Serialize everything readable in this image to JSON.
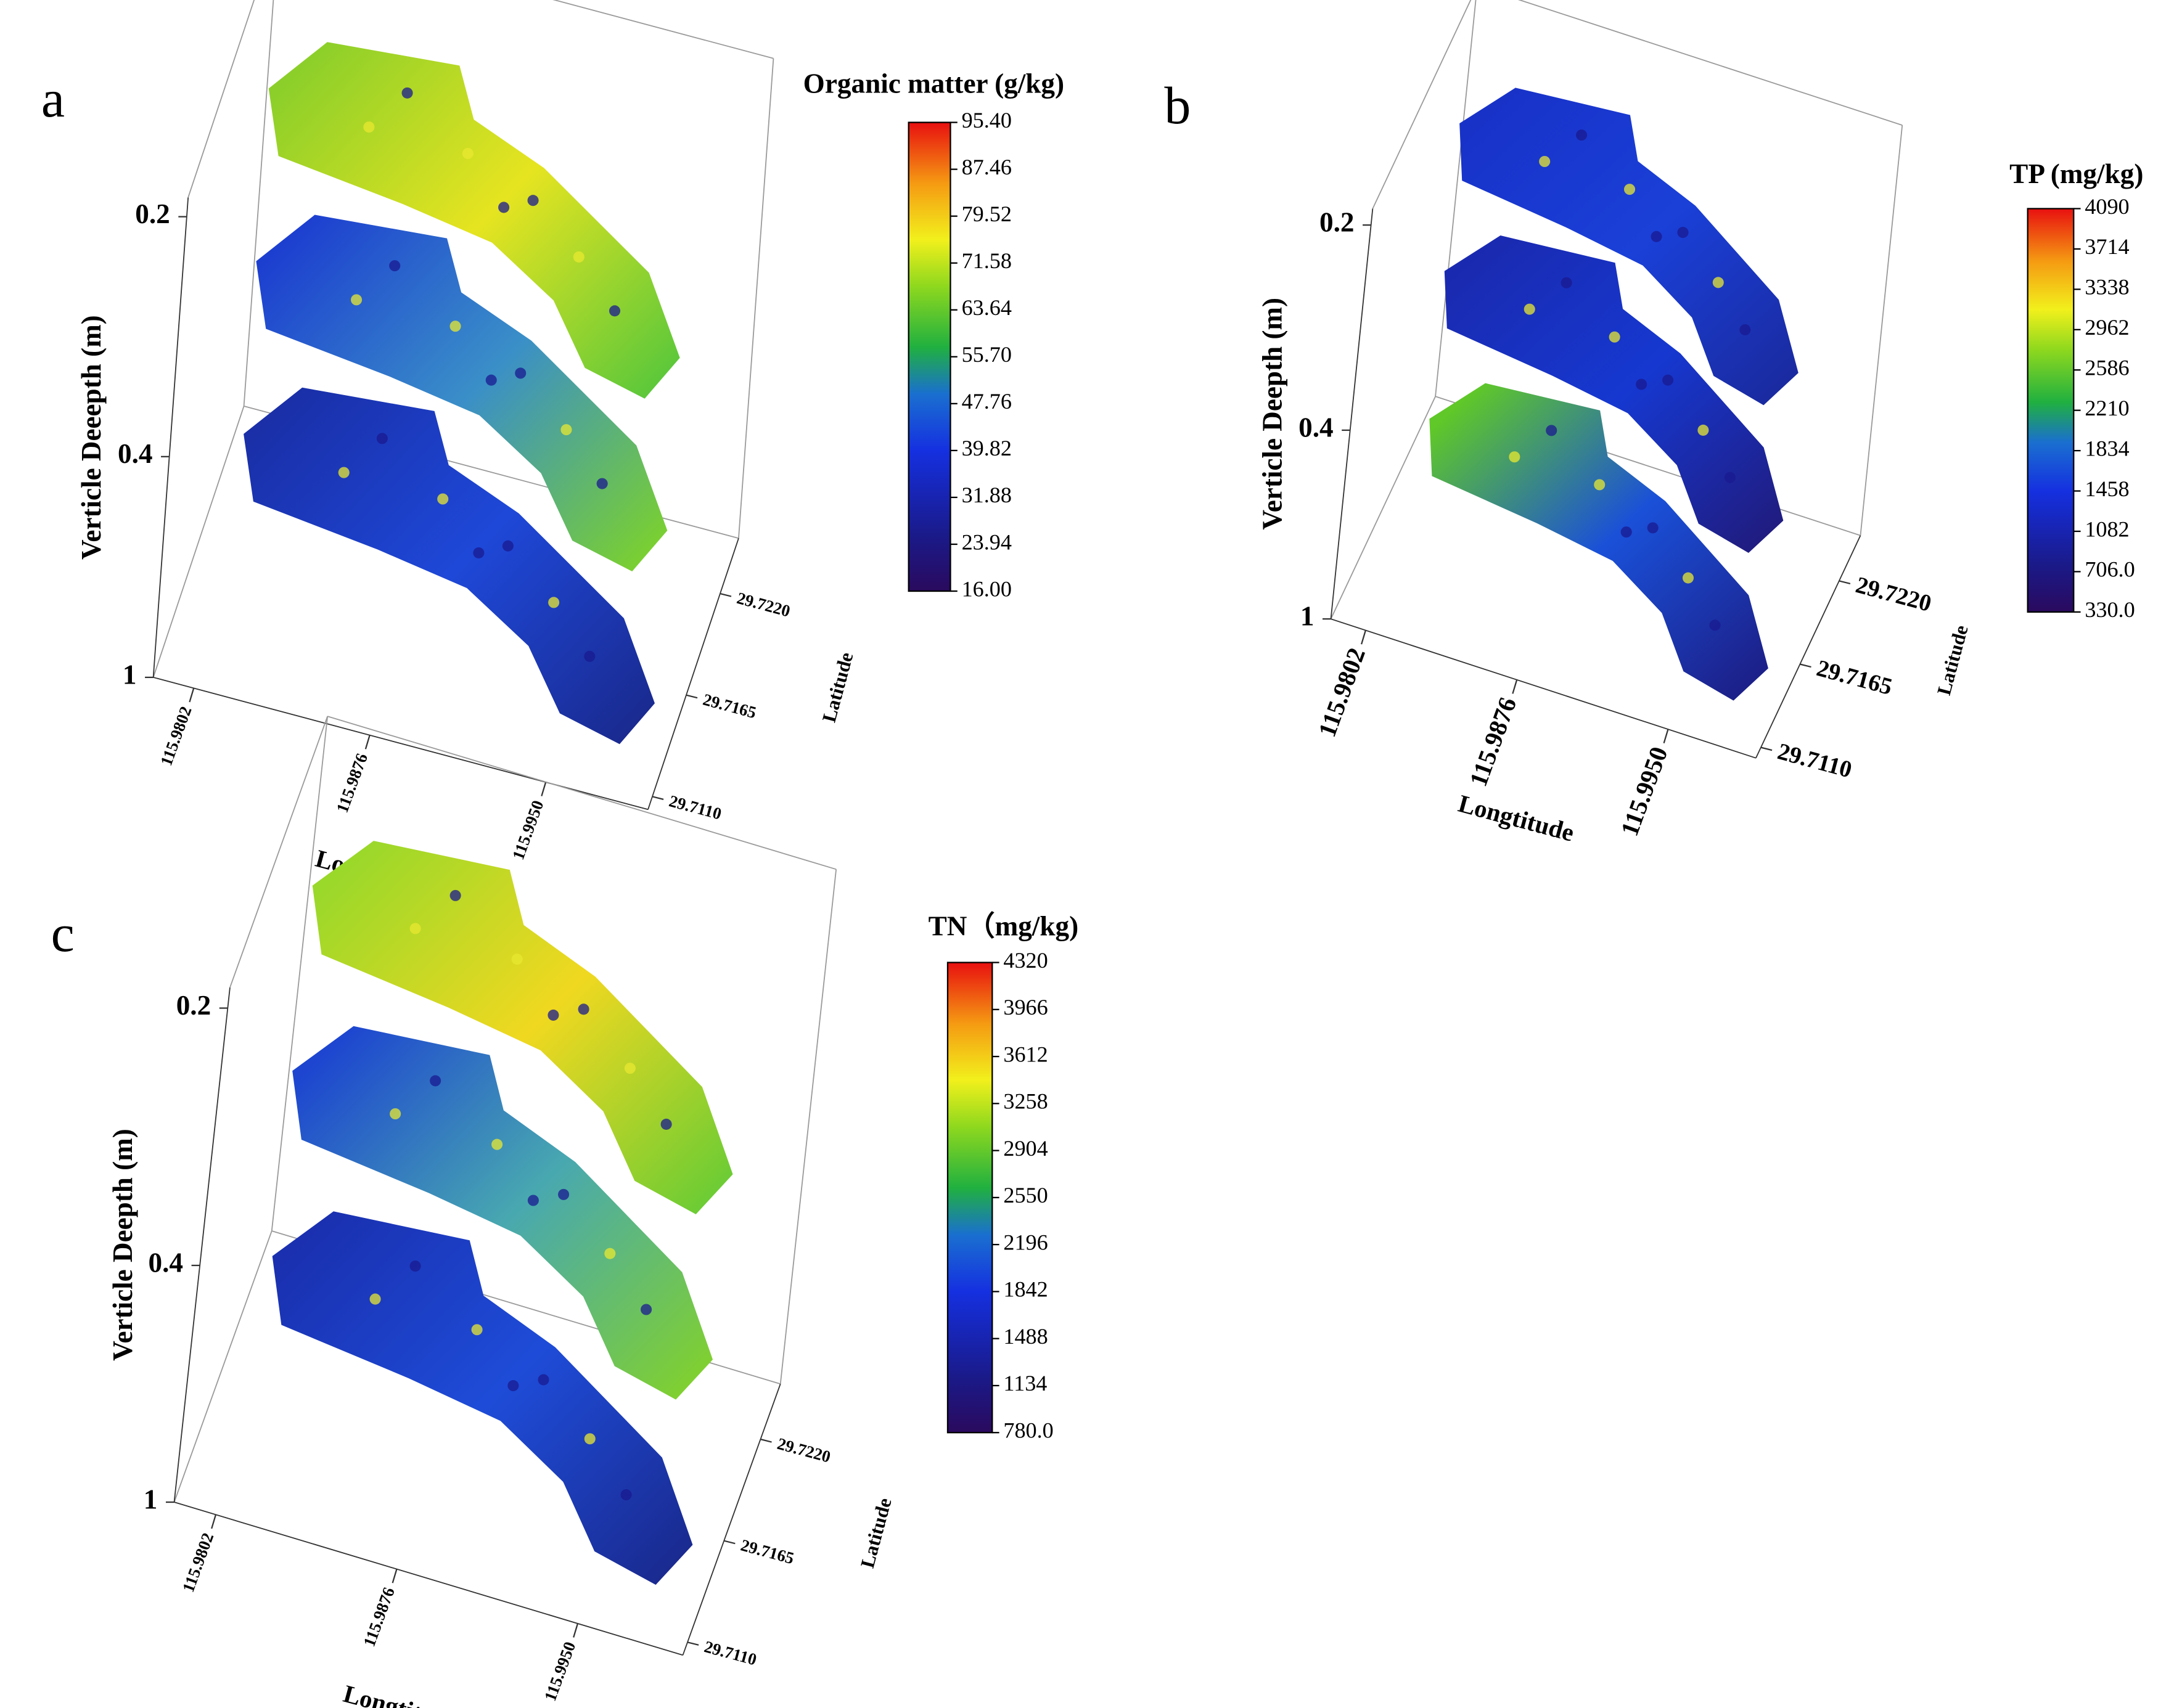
{
  "chart_data": [
    {
      "type": "surface3d",
      "panel_label": "a",
      "title": "Organic matter (g/kg)",
      "clim": [
        16,
        95.4
      ],
      "cticks": [
        {
          "value": 95.4,
          "label": "95.40"
        },
        87.46,
        79.52,
        71.58,
        63.64,
        {
          "value": 55.7,
          "label": "55.70"
        },
        47.76,
        39.82,
        31.88,
        23.94,
        {
          "value": 16,
          "label": "16.00"
        }
      ],
      "zlabel": "Verticle Deeepth (m)",
      "zticks": [
        0.2,
        0.4,
        1
      ],
      "xlabel": "Longtitude",
      "xlim": [
        115.9785,
        115.9993
      ],
      "xticks": [
        115.9802,
        115.9876,
        {
          "value": 115.995,
          "label": "115.9950"
        }
      ],
      "ylabel": "Latitude",
      "ylim": [
        29.7103,
        29.725
      ],
      "yticks": [
        {
          "value": 29.711,
          "label": "29.7110"
        },
        29.7165,
        {
          "value": 29.722,
          "label": "29.7220"
        }
      ]
    },
    {
      "type": "surface3d",
      "panel_label": "b",
      "title": "TP (mg/kg)",
      "clim": [
        330,
        4090
      ],
      "cticks": [
        4090,
        3714,
        3338,
        2962,
        2586,
        2210,
        1834,
        1458,
        1082,
        {
          "value": 706,
          "label": "706.0"
        },
        {
          "value": 330,
          "label": "330.0"
        }
      ],
      "zlabel": "Verticle Deepth (m)",
      "zticks": [
        0.2,
        0.4,
        1
      ],
      "xlabel": "Longtitude",
      "xlim": [
        115.9785,
        115.9993
      ],
      "xticks": [
        115.9802,
        115.9876,
        {
          "value": 115.995,
          "label": "115.9950"
        }
      ],
      "ylabel": "Latitude",
      "ylim": [
        29.7103,
        29.725
      ],
      "yticks": [
        {
          "value": 29.711,
          "label": "29.7110"
        },
        29.7165,
        {
          "value": 29.722,
          "label": "29.7220"
        }
      ]
    },
    {
      "type": "surface3d",
      "panel_label": "c",
      "title": "TN（mg/kg)",
      "clim": [
        780,
        4320
      ],
      "cticks": [
        4320,
        3966,
        3612,
        3258,
        2904,
        2550,
        2196,
        1842,
        1488,
        1134,
        {
          "value": 780,
          "label": "780.0"
        }
      ],
      "zlabel": "Verticle Deepth (m)",
      "zticks": [
        0.2,
        0.4,
        1
      ],
      "xlabel": "Longtitude",
      "xlim": [
        115.9785,
        115.9993
      ],
      "xticks": [
        115.9802,
        115.9876,
        {
          "value": 115.995,
          "label": "115.9950"
        }
      ],
      "ylabel": "Latitude",
      "ylim": [
        29.7103,
        29.725
      ],
      "yticks": [
        {
          "value": 29.711,
          "label": "29.7110"
        },
        29.7165,
        {
          "value": 29.722,
          "label": "29.7220"
        }
      ]
    }
  ]
}
